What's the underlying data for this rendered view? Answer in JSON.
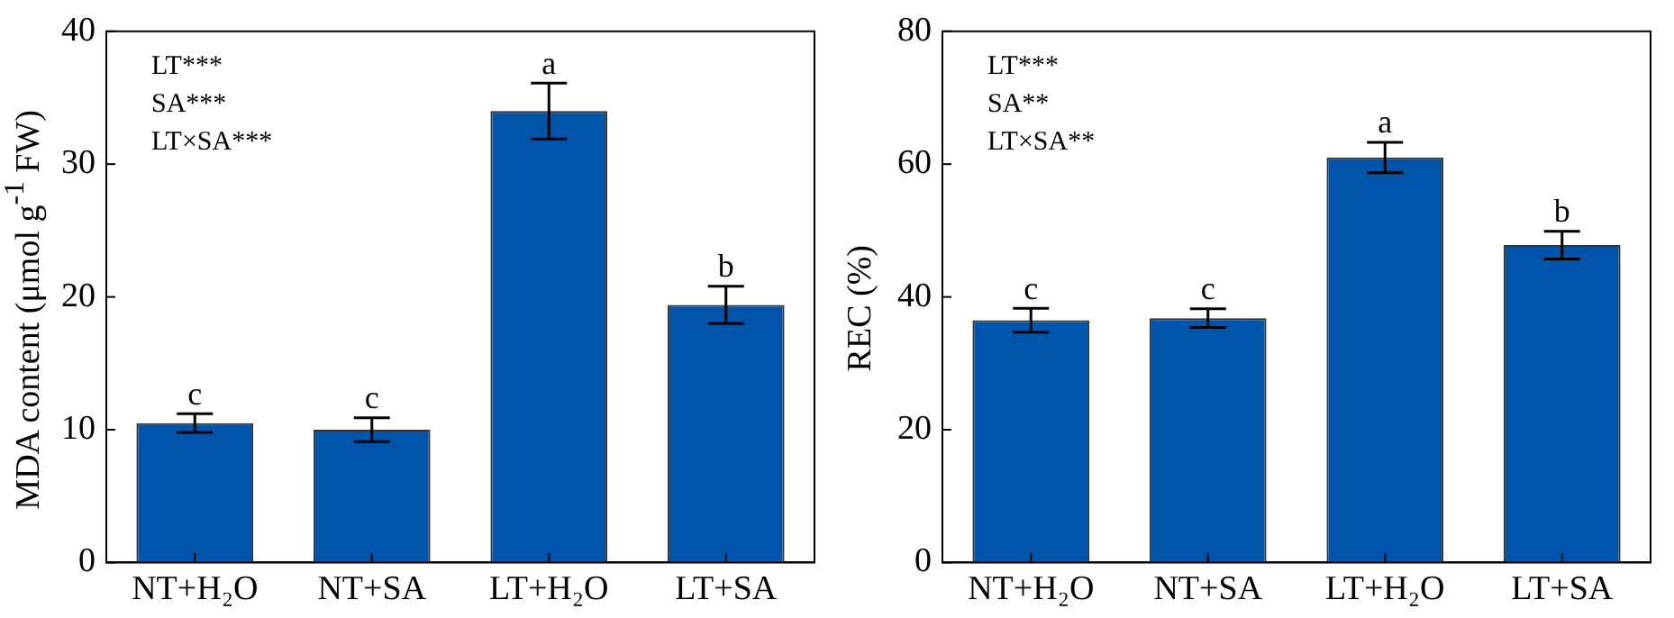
{
  "chart_data": [
    {
      "type": "bar",
      "ylabel": "MDA content (μmol g$^{-1}$ FW)",
      "categories": [
        "NT+H₂O",
        "NT+SA",
        "LT+H₂O",
        "LT+SA"
      ],
      "values": [
        10.5,
        10.0,
        34.0,
        19.4
      ],
      "errors": [
        0.7,
        0.9,
        2.1,
        1.4
      ],
      "color": "#0055aa",
      "ylim": [
        0,
        40
      ],
      "yticks": [
        0,
        10,
        20,
        30,
        40
      ],
      "grid": false,
      "legend": false,
      "annotations": [
        "LT***",
        "SA***",
        "LT×SA***",
        {
          "text": "c",
          "x": "NT+H₂O",
          "y": 11.2
        },
        {
          "text": "c",
          "x": "NT+SA",
          "y": 10.9
        },
        {
          "text": "a",
          "x": "LT+H₂O",
          "y": 36.1
        },
        {
          "text": "b",
          "x": "LT+SA",
          "y": 20.8
        }
      ]
    },
    {
      "type": "bar",
      "ylabel": "REC (%)",
      "categories": [
        "NT+H₂O",
        "NT+SA",
        "LT+H₂O",
        "LT+SA"
      ],
      "values": [
        36.5,
        36.8,
        61.0,
        47.8
      ],
      "errors": [
        1.8,
        1.4,
        2.3,
        2.1
      ],
      "color": "#0055aa",
      "ylim": [
        0,
        80
      ],
      "yticks": [
        0,
        20,
        40,
        60,
        80
      ],
      "grid": false,
      "legend": false,
      "annotations": [
        "LT***",
        "SA**",
        "LT×SA**",
        {
          "text": "c",
          "x": "NT+H₂O",
          "y": 38.3
        },
        {
          "text": "c",
          "x": "NT+SA",
          "y": 38.2
        },
        {
          "text": "a",
          "x": "LT+H₂O",
          "y": 63.3
        },
        {
          "text": "b",
          "x": "LT+SA",
          "y": 49.9
        }
      ]
    }
  ]
}
